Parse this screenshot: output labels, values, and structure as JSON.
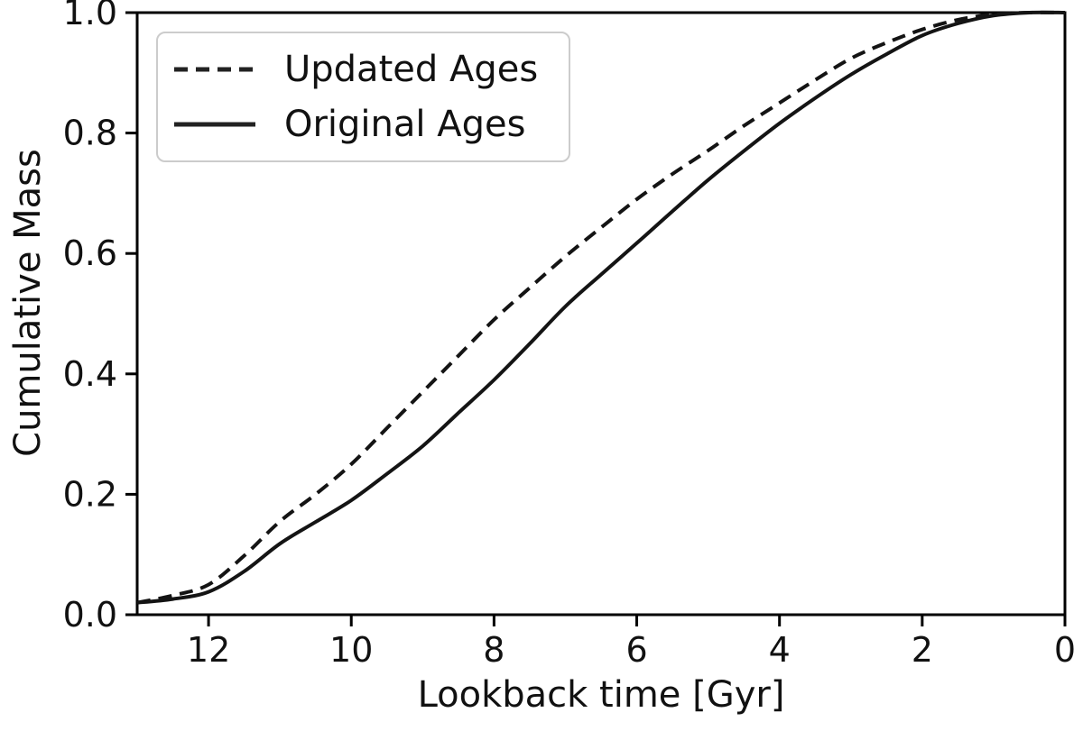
{
  "figure": {
    "background": "#ffffff",
    "axis_color": "#000000",
    "tick_label_color": "#111111",
    "legend": {
      "border_color": "#cccccc",
      "items": [
        {
          "label": "Updated Ages",
          "style": "dashed"
        },
        {
          "label": "Original Ages",
          "style": "solid"
        }
      ]
    }
  },
  "chart_data": {
    "type": "line",
    "title": "",
    "xlabel": "Lookback time [Gyr]",
    "ylabel": "Cumulative Mass",
    "x_axis": {
      "min": 13,
      "max": 0,
      "inverted": true,
      "tick_values": [
        12,
        10,
        8,
        6,
        4,
        2,
        0
      ],
      "tick_labels": [
        "12",
        "10",
        "8",
        "6",
        "4",
        "2",
        "0"
      ]
    },
    "y_axis": {
      "min": 0.0,
      "max": 1.0,
      "tick_values": [
        0.0,
        0.2,
        0.4,
        0.6,
        0.8,
        1.0
      ],
      "tick_labels": [
        "0.0",
        "0.2",
        "0.4",
        "0.6",
        "0.8",
        "1.0"
      ]
    },
    "grid": false,
    "legend_position": "upper left",
    "line_color": "#141414",
    "x": [
      13,
      12.5,
      12,
      11.5,
      11,
      10.5,
      10,
      9.5,
      9,
      8.5,
      8,
      7.5,
      7,
      6.5,
      6,
      5.5,
      5,
      4.5,
      4,
      3.5,
      3,
      2.5,
      2,
      1.5,
      1,
      0.5,
      0
    ],
    "series": [
      {
        "name": "Updated Ages",
        "line_style": "dashed",
        "values": [
          0.02,
          0.032,
          0.05,
          0.098,
          0.155,
          0.2,
          0.25,
          0.31,
          0.37,
          0.43,
          0.49,
          0.543,
          0.595,
          0.643,
          0.69,
          0.732,
          0.771,
          0.812,
          0.85,
          0.888,
          0.924,
          0.95,
          0.972,
          0.988,
          0.997,
          1.0,
          1.0
        ]
      },
      {
        "name": "Original Ages",
        "line_style": "solid",
        "values": [
          0.02,
          0.026,
          0.038,
          0.072,
          0.118,
          0.154,
          0.19,
          0.234,
          0.28,
          0.335,
          0.39,
          0.45,
          0.512,
          0.565,
          0.617,
          0.67,
          0.722,
          0.77,
          0.816,
          0.858,
          0.897,
          0.931,
          0.962,
          0.982,
          0.995,
          1.0,
          1.0
        ]
      }
    ]
  }
}
